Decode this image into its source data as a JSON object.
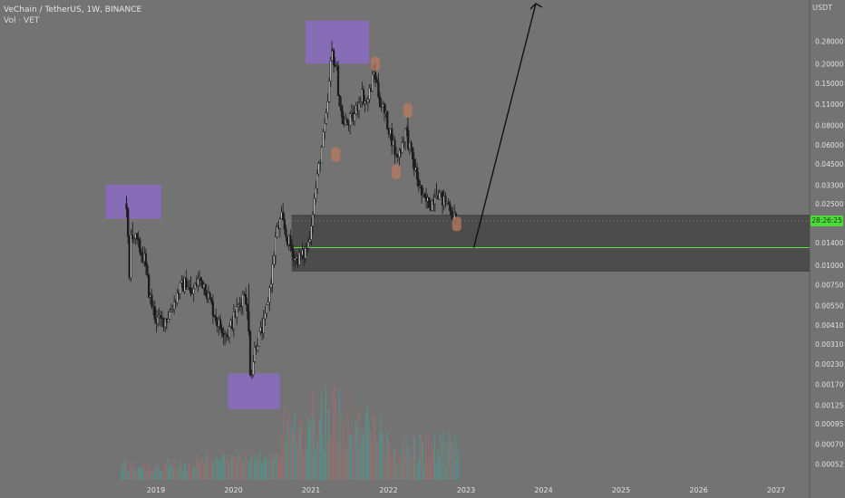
{
  "header": {
    "symbol": "VeChain / TetherUS, 1W, BINANCE",
    "volume_label": "Vol · VET"
  },
  "price_axis_unit": "USDT",
  "price_tag": "28:26:25",
  "colors": {
    "background": "#737373",
    "candle": "#1c1c1c",
    "zone": "#4a4a4a",
    "marker_purple": "#8b6bc4",
    "marker_orange": "#b87a5e",
    "support_line": "#57e63c",
    "volume_up": "#3fa89a",
    "volume_down": "#b06a6a",
    "arrow": "#111111"
  },
  "chart_data": {
    "type": "candlestick",
    "title": "VeChain / TetherUS, 1W, BINANCE",
    "y_scale": "log",
    "y_ticks": [
      0.28,
      0.2,
      0.15,
      0.11,
      0.08,
      0.06,
      0.045,
      0.033,
      0.025,
      0.014,
      0.01,
      0.0075,
      0.0055,
      0.0041,
      0.0031,
      0.0023,
      0.0017,
      0.00125,
      0.00095,
      0.0007,
      0.00052
    ],
    "y_tick_labels": [
      "0.28000",
      "0.20000",
      "0.15000",
      "0.11000",
      "0.08000",
      "0.06000",
      "0.04500",
      "0.03300",
      "0.02500",
      "0.01400",
      "0.01000",
      "0.00750",
      "0.00550",
      "0.00410",
      "0.00310",
      "0.00230",
      "0.00170",
      "0.00125",
      "0.00095",
      "0.00070",
      "0.00052"
    ],
    "x_ticks": [
      "2019",
      "2020",
      "2021",
      "2022",
      "2023",
      "2024",
      "2025",
      "2026",
      "2027"
    ],
    "x_tick_years": [
      2019,
      2020,
      2021,
      2022,
      2023,
      2024,
      2025,
      2026,
      2027
    ],
    "price_path": [
      [
        2018.62,
        0.025
      ],
      [
        2018.66,
        0.0075
      ],
      [
        2018.68,
        0.017
      ],
      [
        2018.75,
        0.014
      ],
      [
        2018.85,
        0.011
      ],
      [
        2018.92,
        0.0062
      ],
      [
        2019.0,
        0.0045
      ],
      [
        2019.05,
        0.0043
      ],
      [
        2019.15,
        0.0046
      ],
      [
        2019.3,
        0.007
      ],
      [
        2019.4,
        0.0078
      ],
      [
        2019.45,
        0.0063
      ],
      [
        2019.55,
        0.0082
      ],
      [
        2019.62,
        0.0076
      ],
      [
        2019.7,
        0.0058
      ],
      [
        2019.8,
        0.0042
      ],
      [
        2019.92,
        0.0036
      ],
      [
        2020.0,
        0.0045
      ],
      [
        2020.1,
        0.006
      ],
      [
        2020.15,
        0.007
      ],
      [
        2020.2,
        0.0035
      ],
      [
        2020.22,
        0.0019
      ],
      [
        2020.28,
        0.003
      ],
      [
        2020.4,
        0.0042
      ],
      [
        2020.5,
        0.0092
      ],
      [
        2020.55,
        0.016
      ],
      [
        2020.62,
        0.02
      ],
      [
        2020.68,
        0.0155
      ],
      [
        2020.8,
        0.011
      ],
      [
        2020.9,
        0.0115
      ],
      [
        2020.97,
        0.014
      ],
      [
        2021.03,
        0.024
      ],
      [
        2021.12,
        0.05
      ],
      [
        2021.2,
        0.09
      ],
      [
        2021.27,
        0.24
      ],
      [
        2021.33,
        0.18
      ],
      [
        2021.37,
        0.11
      ],
      [
        2021.42,
        0.08
      ],
      [
        2021.55,
        0.09
      ],
      [
        2021.65,
        0.13
      ],
      [
        2021.72,
        0.11
      ],
      [
        2021.82,
        0.18
      ],
      [
        2021.88,
        0.12
      ],
      [
        2021.95,
        0.095
      ],
      [
        2022.03,
        0.07
      ],
      [
        2022.1,
        0.05
      ],
      [
        2022.15,
        0.055
      ],
      [
        2022.22,
        0.075
      ],
      [
        2022.3,
        0.05
      ],
      [
        2022.38,
        0.035
      ],
      [
        2022.45,
        0.026
      ],
      [
        2022.55,
        0.025
      ],
      [
        2022.62,
        0.031
      ],
      [
        2022.7,
        0.026
      ],
      [
        2022.78,
        0.025
      ],
      [
        2022.85,
        0.02
      ],
      [
        2022.87,
        0.019
      ]
    ],
    "price_high": [
      [
        2018.62,
        0.028
      ],
      [
        2018.7,
        0.019
      ],
      [
        2019.0,
        0.0052
      ],
      [
        2019.45,
        0.0085
      ],
      [
        2020.2,
        0.0076
      ],
      [
        2020.55,
        0.018
      ],
      [
        2021.27,
        0.28
      ],
      [
        2021.82,
        0.2
      ],
      [
        2022.25,
        0.09
      ],
      [
        2022.62,
        0.034
      ]
    ],
    "support_zone": {
      "low": 0.0092,
      "high": 0.021,
      "start_year": 2020.75
    },
    "support_line": 0.013,
    "forecast_arrow": {
      "from": [
        2023.1,
        0.013
      ],
      "to": [
        2023.9,
        0.7
      ]
    },
    "markers": [
      {
        "type": "box",
        "color": "purple",
        "x0": 2018.35,
        "x1": 2019.07,
        "y0": 0.02,
        "y1": 0.033
      },
      {
        "type": "box",
        "color": "purple",
        "x0": 2019.93,
        "x1": 2020.6,
        "y0": 0.00118,
        "y1": 0.002
      },
      {
        "type": "box",
        "color": "purple",
        "x0": 2020.93,
        "x1": 2021.75,
        "y0": 0.2,
        "y1": 0.38
      },
      {
        "type": "dot",
        "color": "orange",
        "x": 2021.32,
        "y": 0.052
      },
      {
        "type": "dot",
        "color": "orange",
        "x": 2021.83,
        "y": 0.2
      },
      {
        "type": "dot",
        "color": "orange",
        "x": 2022.1,
        "y": 0.04
      },
      {
        "type": "dot",
        "color": "orange",
        "x": 2022.25,
        "y": 0.1
      },
      {
        "type": "dot",
        "color": "orange",
        "x": 2022.88,
        "y": 0.0185
      }
    ]
  }
}
